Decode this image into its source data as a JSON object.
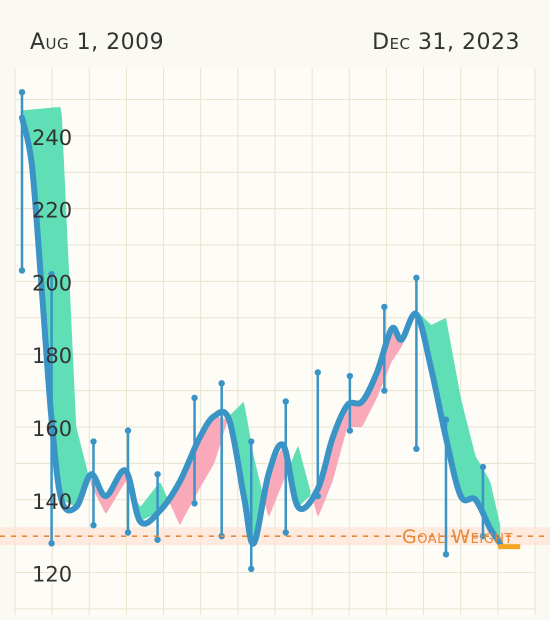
{
  "header": {
    "start_date": "Aug 1, 2009",
    "end_date": "Dec 31, 2023"
  },
  "goal_label": "Goal Weight",
  "colors": {
    "trend_line": "#3a94c5",
    "gain_fill": "#4fdcb0",
    "loss_fill": "#f8a0b2",
    "goal_line": "#e8893a",
    "goal_band": "#fde4d6",
    "grid": "#e8e4cf",
    "range_bar": "#3a94c5"
  },
  "chart_data": {
    "type": "line",
    "xlabel": "",
    "ylabel": "",
    "ylim": [
      113,
      257
    ],
    "yticks": [
      120,
      140,
      160,
      180,
      200,
      220,
      240
    ],
    "goal_weight": 130,
    "grid": true,
    "trend": [
      {
        "x": 0,
        "y": 245
      },
      {
        "x": 0.02,
        "y": 232
      },
      {
        "x": 0.04,
        "y": 198
      },
      {
        "x": 0.06,
        "y": 162
      },
      {
        "x": 0.08,
        "y": 140
      },
      {
        "x": 0.11,
        "y": 138
      },
      {
        "x": 0.14,
        "y": 147
      },
      {
        "x": 0.17,
        "y": 141
      },
      {
        "x": 0.21,
        "y": 148
      },
      {
        "x": 0.24,
        "y": 134
      },
      {
        "x": 0.28,
        "y": 137
      },
      {
        "x": 0.32,
        "y": 145
      },
      {
        "x": 0.36,
        "y": 157
      },
      {
        "x": 0.39,
        "y": 163
      },
      {
        "x": 0.42,
        "y": 162
      },
      {
        "x": 0.45,
        "y": 141
      },
      {
        "x": 0.47,
        "y": 128
      },
      {
        "x": 0.5,
        "y": 147
      },
      {
        "x": 0.53,
        "y": 155
      },
      {
        "x": 0.56,
        "y": 138
      },
      {
        "x": 0.6,
        "y": 143
      },
      {
        "x": 0.63,
        "y": 157
      },
      {
        "x": 0.66,
        "y": 166
      },
      {
        "x": 0.69,
        "y": 167
      },
      {
        "x": 0.72,
        "y": 175
      },
      {
        "x": 0.75,
        "y": 187
      },
      {
        "x": 0.77,
        "y": 184
      },
      {
        "x": 0.8,
        "y": 191
      },
      {
        "x": 0.83,
        "y": 176
      },
      {
        "x": 0.86,
        "y": 157
      },
      {
        "x": 0.89,
        "y": 141
      },
      {
        "x": 0.92,
        "y": 140
      },
      {
        "x": 0.95,
        "y": 132
      },
      {
        "x": 0.97,
        "y": 128
      }
    ],
    "raw_band": [
      {
        "x": 0,
        "y": 247
      },
      {
        "x": 0.08,
        "y": 248
      },
      {
        "x": 0.11,
        "y": 160
      },
      {
        "x": 0.14,
        "y": 144
      },
      {
        "x": 0.17,
        "y": 136
      },
      {
        "x": 0.21,
        "y": 145
      },
      {
        "x": 0.24,
        "y": 138
      },
      {
        "x": 0.28,
        "y": 145
      },
      {
        "x": 0.32,
        "y": 133
      },
      {
        "x": 0.36,
        "y": 143
      },
      {
        "x": 0.39,
        "y": 150
      },
      {
        "x": 0.42,
        "y": 163
      },
      {
        "x": 0.45,
        "y": 167
      },
      {
        "x": 0.47,
        "y": 152
      },
      {
        "x": 0.5,
        "y": 135
      },
      {
        "x": 0.53,
        "y": 145
      },
      {
        "x": 0.56,
        "y": 155
      },
      {
        "x": 0.6,
        "y": 135
      },
      {
        "x": 0.63,
        "y": 145
      },
      {
        "x": 0.66,
        "y": 160
      },
      {
        "x": 0.69,
        "y": 160
      },
      {
        "x": 0.72,
        "y": 168
      },
      {
        "x": 0.75,
        "y": 178
      },
      {
        "x": 0.77,
        "y": 182
      },
      {
        "x": 0.8,
        "y": 192
      },
      {
        "x": 0.83,
        "y": 188
      },
      {
        "x": 0.86,
        "y": 190
      },
      {
        "x": 0.89,
        "y": 168
      },
      {
        "x": 0.92,
        "y": 152
      },
      {
        "x": 0.95,
        "y": 145
      },
      {
        "x": 0.97,
        "y": 133
      }
    ],
    "ranges": [
      {
        "x": 0.0,
        "low": 203,
        "high": 252
      },
      {
        "x": 0.06,
        "low": 128,
        "high": 202
      },
      {
        "x": 0.145,
        "low": 133,
        "high": 156
      },
      {
        "x": 0.215,
        "low": 131,
        "high": 159
      },
      {
        "x": 0.275,
        "low": 129,
        "high": 147
      },
      {
        "x": 0.35,
        "low": 139,
        "high": 168
      },
      {
        "x": 0.405,
        "low": 130,
        "high": 172
      },
      {
        "x": 0.465,
        "low": 121,
        "high": 156
      },
      {
        "x": 0.535,
        "low": 131,
        "high": 167
      },
      {
        "x": 0.6,
        "low": 141,
        "high": 175
      },
      {
        "x": 0.665,
        "low": 159,
        "high": 174
      },
      {
        "x": 0.735,
        "low": 170,
        "high": 193
      },
      {
        "x": 0.8,
        "low": 154,
        "high": 201
      },
      {
        "x": 0.86,
        "low": 125,
        "high": 162
      },
      {
        "x": 0.935,
        "low": 130,
        "high": 149
      }
    ]
  }
}
